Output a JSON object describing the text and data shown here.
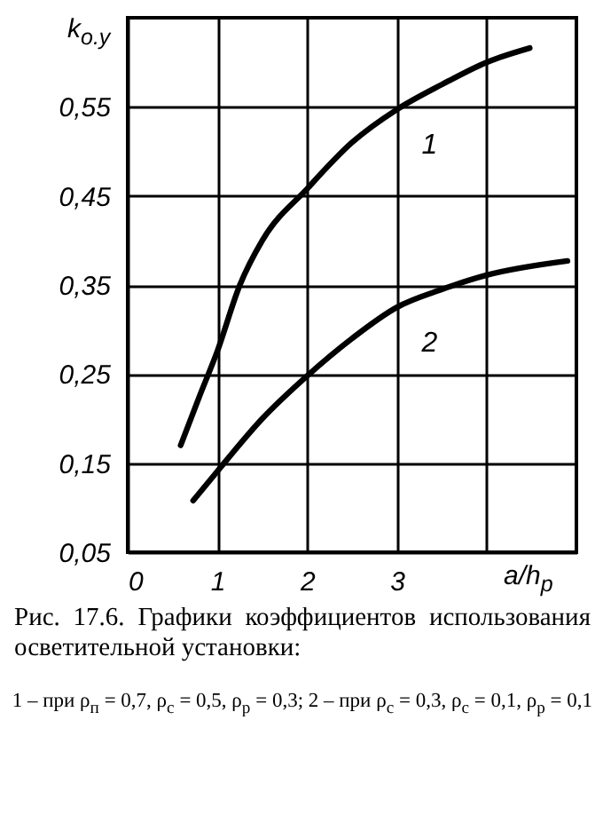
{
  "chart_data": {
    "type": "line",
    "xlabel": "a/h$_{р}$",
    "ylabel": "k$_{о.у}$",
    "xlim": [
      0,
      5
    ],
    "ylim": [
      0.05,
      0.65
    ],
    "xticks": [
      0,
      1,
      2,
      3,
      {
        "value": 4,
        "label": null
      }
    ],
    "yticks": [
      {
        "value": 0.05,
        "label": "0,05"
      },
      {
        "value": 0.15,
        "label": "0,15"
      },
      {
        "value": 0.25,
        "label": "0,25"
      },
      {
        "value": 0.35,
        "label": "0,35"
      },
      {
        "value": 0.45,
        "label": "0,45"
      },
      {
        "value": 0.55,
        "label": "0,55"
      }
    ],
    "grid": true,
    "line_style": "solid",
    "marker": "none",
    "series": [
      {
        "color": "#000000",
        "x": [
          0.59,
          0.8,
          1,
          1.25,
          1.5,
          2,
          2.5,
          3,
          3.5,
          4,
          4.48
        ],
        "values": [
          0.17,
          0.225,
          0.276,
          0.35,
          0.4,
          0.458,
          0.51,
          0.547,
          0.575,
          0.6,
          0.616
        ]
      },
      {
        "color": "#000000",
        "x": [
          0.73,
          1,
          1.5,
          2,
          2.5,
          3,
          3.5,
          4,
          4.9
        ],
        "values": [
          0.108,
          0.141,
          0.2,
          0.248,
          0.29,
          0.325,
          0.345,
          0.361,
          0.377
        ]
      }
    ],
    "annotations": [
      {
        "text": "1",
        "x": 3,
        "y": 0.547
      },
      {
        "text": "2",
        "x": 3,
        "y": 0.325
      },
      "Рис. 17.6. Графики коэффициентов использования осветительной установки:",
      "1 – при ρ$_{п}$ = 0,7, ρ$_{с}$ = 0,5, ρ$_{р}$ = 0,3; 2 – при ρ$_{с}$ = 0,3, ρ$_{с}$ = 0,1, ρ$_{р}$ = 0,1"
    ]
  }
}
